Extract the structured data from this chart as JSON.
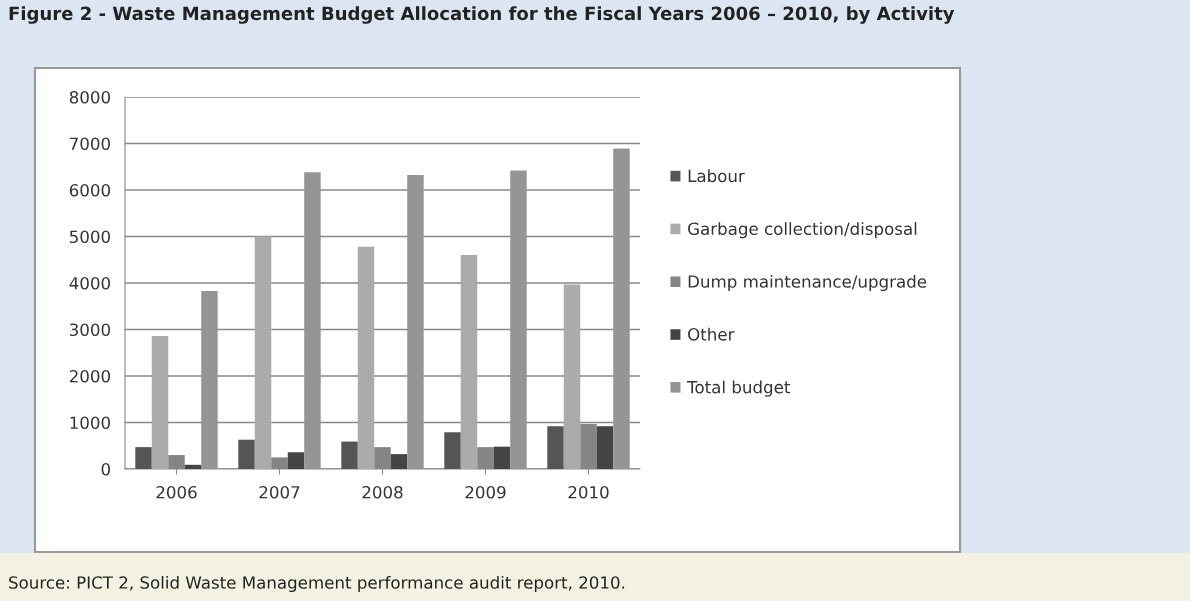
{
  "chart_data": {
    "type": "bar",
    "title": "Figure 2 - Waste Management Budget Allocation for the Fiscal Years 2006 – 2010, by Activity",
    "categories": [
      "2006",
      "2007",
      "2008",
      "2009",
      "2010"
    ],
    "series": [
      {
        "name": "Labour",
        "color": "#555555",
        "values": [
          470,
          630,
          590,
          790,
          920
        ]
      },
      {
        "name": "Garbage collection/disposal",
        "color": "#ababab",
        "values": [
          2860,
          5000,
          4780,
          4600,
          3970
        ]
      },
      {
        "name": "Dump maintenance/upgrade",
        "color": "#858585",
        "values": [
          300,
          250,
          470,
          470,
          970
        ]
      },
      {
        "name": "Other",
        "color": "#444444",
        "values": [
          90,
          360,
          320,
          480,
          920
        ]
      },
      {
        "name": "Total budget",
        "color": "#959595",
        "values": [
          3830,
          6380,
          6320,
          6420,
          6890
        ]
      }
    ],
    "ylim": [
      0,
      8000
    ],
    "yticks": [
      0,
      1000,
      2000,
      3000,
      4000,
      5000,
      6000,
      7000,
      8000
    ],
    "grid": "y",
    "legend": "right",
    "annotations": [
      "Source: PICT 2, Solid Waste Management performance audit report, 2010."
    ]
  }
}
